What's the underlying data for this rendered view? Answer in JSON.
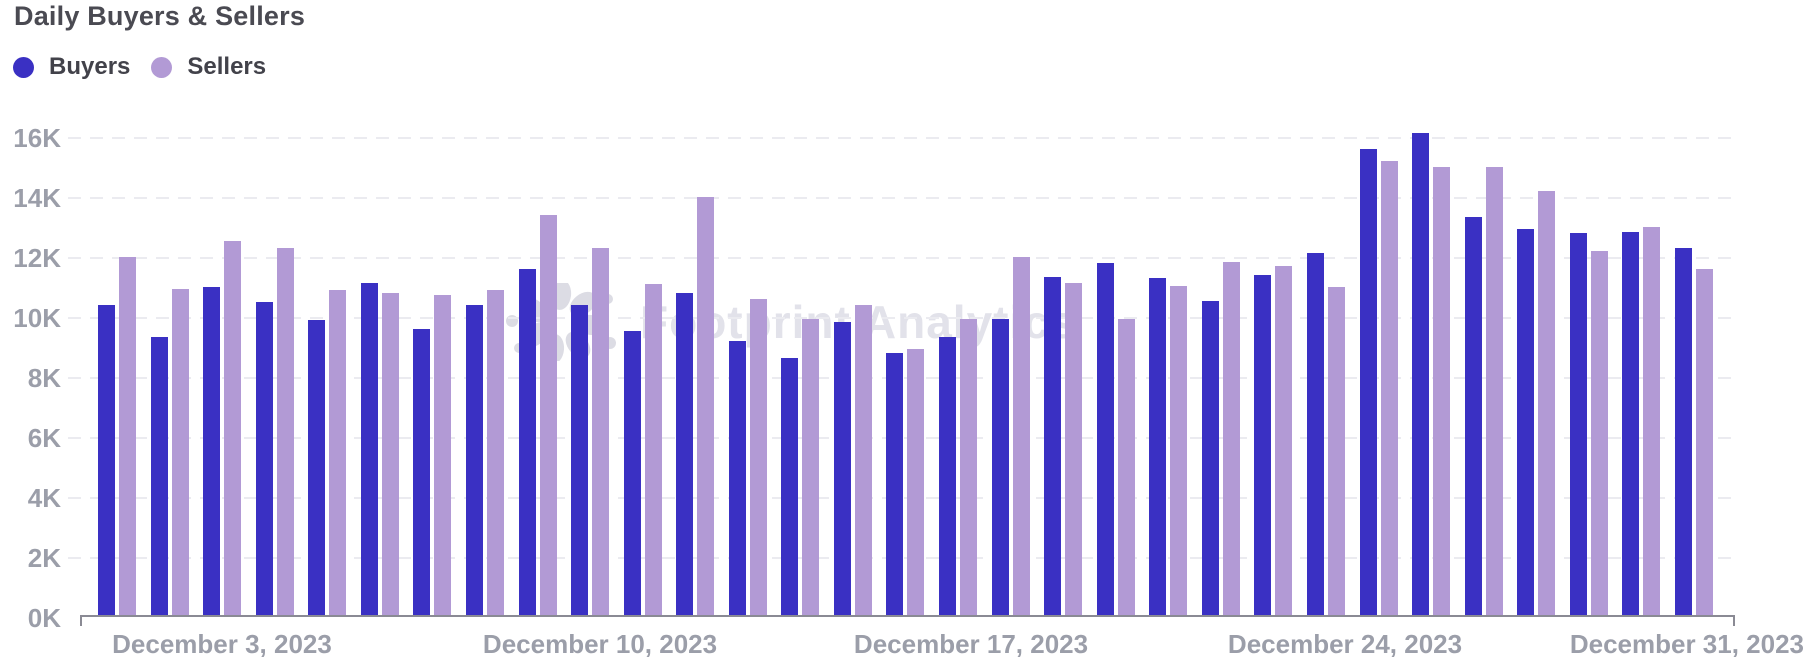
{
  "title": "Daily Buyers & Sellers",
  "watermark": "Footprint Analytics",
  "legend": {
    "items": [
      {
        "label": "Buyers",
        "color": "#3a30c3"
      },
      {
        "label": "Sellers",
        "color": "#b29ad5"
      }
    ]
  },
  "chart_data": {
    "type": "bar",
    "title": "Daily Buyers & Sellers",
    "categories": [
      "December 1, 2023",
      "December 2, 2023",
      "December 3, 2023",
      "December 4, 2023",
      "December 5, 2023",
      "December 6, 2023",
      "December 7, 2023",
      "December 8, 2023",
      "December 9, 2023",
      "December 10, 2023",
      "December 11, 2023",
      "December 12, 2023",
      "December 13, 2023",
      "December 14, 2023",
      "December 15, 2023",
      "December 16, 2023",
      "December 17, 2023",
      "December 18, 2023",
      "December 19, 2023",
      "December 20, 2023",
      "December 21, 2023",
      "December 22, 2023",
      "December 23, 2023",
      "December 24, 2023",
      "December 25, 2023",
      "December 26, 2023",
      "December 27, 2023",
      "December 28, 2023",
      "December 29, 2023",
      "December 30, 2023",
      "December 31, 2023"
    ],
    "series": [
      {
        "name": "Buyers",
        "color": "#3a30c3",
        "values": [
          10400,
          9350,
          11000,
          10500,
          9900,
          11150,
          9600,
          10400,
          11600,
          10400,
          9550,
          10800,
          9200,
          8650,
          9850,
          8800,
          9350,
          9950,
          11350,
          11800,
          11300,
          10550,
          11400,
          12150,
          15600,
          16150,
          13350,
          12950,
          12800,
          12850,
          12300
        ]
      },
      {
        "name": "Sellers",
        "color": "#b29ad5",
        "values": [
          12000,
          10950,
          12550,
          12300,
          10900,
          10800,
          10750,
          10900,
          13400,
          12300,
          11100,
          14000,
          10600,
          9950,
          10400,
          8950,
          9950,
          12000,
          11150,
          9950,
          11050,
          11850,
          11700,
          11000,
          15200,
          15000,
          15000,
          14200,
          12200,
          13000,
          11600
        ]
      }
    ],
    "xlabel": "",
    "ylabel": "",
    "ylim": [
      0,
      16000
    ],
    "y_ticks": [
      "0K",
      "2K",
      "4K",
      "6K",
      "8K",
      "10K",
      "12K",
      "14K",
      "16K"
    ],
    "x_tick_labels": [
      "December 3, 2023",
      "December 10, 2023",
      "December 17, 2023",
      "December 24, 2023",
      "December 31, 2023"
    ],
    "grid": "horizontal-dashed",
    "legend_position": "top-left"
  }
}
